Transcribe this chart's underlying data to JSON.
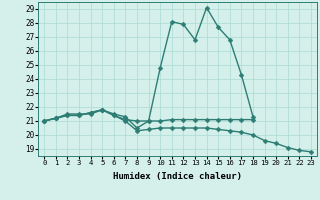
{
  "line1_x": [
    0,
    1,
    2,
    3,
    4,
    5,
    6,
    7,
    8,
    9,
    10,
    11,
    12,
    13,
    14,
    15,
    16,
    17,
    18
  ],
  "line1_y": [
    21.0,
    21.2,
    21.5,
    21.5,
    21.5,
    21.8,
    21.5,
    21.3,
    20.5,
    21.0,
    24.8,
    28.1,
    27.9,
    26.8,
    29.1,
    27.7,
    26.8,
    24.3,
    21.3
  ],
  "line2_x": [
    0,
    1,
    2,
    3,
    4,
    5,
    6,
    7,
    8,
    9,
    10,
    11,
    12,
    13,
    14,
    15,
    16,
    17,
    18,
    19,
    20,
    21,
    22,
    23
  ],
  "line2_y": [
    21.0,
    21.2,
    21.4,
    21.4,
    21.6,
    21.8,
    21.4,
    21.0,
    20.3,
    20.4,
    20.5,
    20.5,
    20.5,
    20.5,
    20.5,
    20.4,
    20.3,
    20.2,
    20.0,
    19.6,
    19.4,
    19.1,
    18.9,
    18.8
  ],
  "line3_x": [
    0,
    1,
    2,
    3,
    4,
    5,
    6,
    7,
    8,
    9,
    10,
    11,
    12,
    13,
    14,
    15,
    16,
    17,
    18
  ],
  "line3_y": [
    21.0,
    21.2,
    21.4,
    21.4,
    21.6,
    21.8,
    21.4,
    21.1,
    21.0,
    21.0,
    21.0,
    21.1,
    21.1,
    21.1,
    21.1,
    21.1,
    21.1,
    21.1,
    21.1
  ],
  "line_color": "#2d7d74",
  "bg_color": "#d5f0eb",
  "grid_color": "#b0ddd7",
  "xlabel": "Humidex (Indice chaleur)",
  "xlim": [
    -0.5,
    23.5
  ],
  "ylim": [
    18.5,
    29.5
  ],
  "yticks": [
    19,
    20,
    21,
    22,
    23,
    24,
    25,
    26,
    27,
    28,
    29
  ],
  "xticks": [
    0,
    1,
    2,
    3,
    4,
    5,
    6,
    7,
    8,
    9,
    10,
    11,
    12,
    13,
    14,
    15,
    16,
    17,
    18,
    19,
    20,
    21,
    22,
    23
  ],
  "markersize": 2.5,
  "linewidth": 1.0
}
